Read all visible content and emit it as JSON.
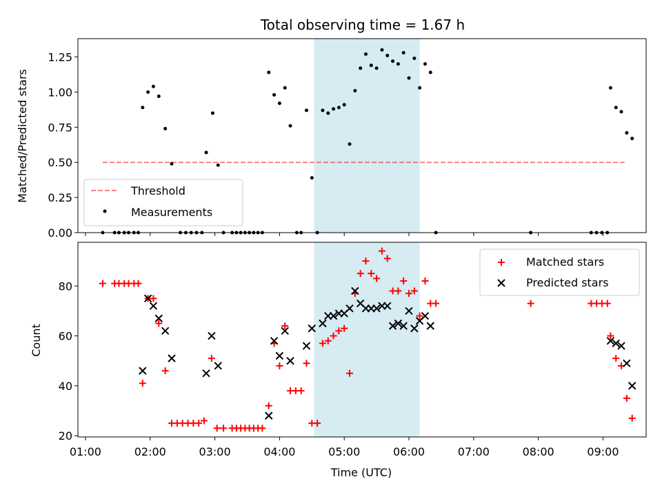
{
  "chart_data": [
    {
      "type": "scatter",
      "title": "Total observing time = 1.67 h",
      "xlabel": "",
      "ylabel": "Matched/Predicted stars",
      "xlim": [
        "00:53",
        "09:40"
      ],
      "ylim": [
        0,
        1.38
      ],
      "y_ticks": [
        0.0,
        0.25,
        0.5,
        0.75,
        1.0,
        1.25
      ],
      "y_tick_labels": [
        "0.00",
        "0.25",
        "0.50",
        "0.75",
        "1.00",
        "1.25"
      ],
      "x_ticks": [
        "01:00",
        "02:00",
        "03:00",
        "04:00",
        "05:00",
        "06:00",
        "07:00",
        "08:00",
        "09:00"
      ],
      "highlight_span": {
        "start": "04:32",
        "end": "06:10",
        "color": "#add8e6"
      },
      "threshold": {
        "name": "Threshold",
        "value": 0.5,
        "start": "01:16",
        "end": "09:20",
        "color": "#ff0000"
      },
      "legend_position": "lower-left",
      "series": [
        {
          "name": "Measurements",
          "marker": "dot",
          "color": "#000000",
          "points": [
            [
              "01:16",
              0.0
            ],
            [
              "01:27",
              0.0
            ],
            [
              "01:31",
              0.0
            ],
            [
              "01:36",
              0.0
            ],
            [
              "01:40",
              0.0
            ],
            [
              "01:45",
              0.0
            ],
            [
              "01:49",
              0.0
            ],
            [
              "01:53",
              0.89
            ],
            [
              "01:58",
              1.0
            ],
            [
              "02:03",
              1.04
            ],
            [
              "02:08",
              0.97
            ],
            [
              "02:14",
              0.74
            ],
            [
              "02:20",
              0.49
            ],
            [
              "02:28",
              0.0
            ],
            [
              "02:33",
              0.0
            ],
            [
              "02:38",
              0.0
            ],
            [
              "02:43",
              0.0
            ],
            [
              "02:48",
              0.0
            ],
            [
              "02:52",
              0.57
            ],
            [
              "02:58",
              0.85
            ],
            [
              "03:03",
              0.48
            ],
            [
              "03:08",
              0.0
            ],
            [
              "03:16",
              0.0
            ],
            [
              "03:20",
              0.0
            ],
            [
              "03:24",
              0.0
            ],
            [
              "03:28",
              0.0
            ],
            [
              "03:32",
              0.0
            ],
            [
              "03:36",
              0.0
            ],
            [
              "03:40",
              0.0
            ],
            [
              "03:44",
              0.0
            ],
            [
              "03:50",
              1.14
            ],
            [
              "03:55",
              0.98
            ],
            [
              "04:00",
              0.92
            ],
            [
              "04:05",
              1.03
            ],
            [
              "04:10",
              0.76
            ],
            [
              "04:16",
              0.0
            ],
            [
              "04:20",
              0.0
            ],
            [
              "04:25",
              0.87
            ],
            [
              "04:30",
              0.39
            ],
            [
              "04:35",
              0.0
            ],
            [
              "04:40",
              0.87
            ],
            [
              "04:45",
              0.85
            ],
            [
              "04:50",
              0.88
            ],
            [
              "04:55",
              0.89
            ],
            [
              "05:00",
              0.91
            ],
            [
              "05:05",
              0.63
            ],
            [
              "05:10",
              1.01
            ],
            [
              "05:15",
              1.17
            ],
            [
              "05:20",
              1.27
            ],
            [
              "05:25",
              1.19
            ],
            [
              "05:30",
              1.17
            ],
            [
              "05:35",
              1.3
            ],
            [
              "05:40",
              1.26
            ],
            [
              "05:45",
              1.22
            ],
            [
              "05:50",
              1.2
            ],
            [
              "05:55",
              1.28
            ],
            [
              "06:00",
              1.1
            ],
            [
              "06:05",
              1.24
            ],
            [
              "06:10",
              1.03
            ],
            [
              "06:15",
              1.2
            ],
            [
              "06:20",
              1.14
            ],
            [
              "06:25",
              0.0
            ],
            [
              "07:53",
              0.0
            ],
            [
              "08:49",
              0.0
            ],
            [
              "08:54",
              0.0
            ],
            [
              "08:59",
              0.0
            ],
            [
              "09:04",
              0.0
            ],
            [
              "09:07",
              1.03
            ],
            [
              "09:12",
              0.89
            ],
            [
              "09:17",
              0.86
            ],
            [
              "09:22",
              0.71
            ],
            [
              "09:27",
              0.67
            ]
          ]
        }
      ]
    },
    {
      "type": "scatter",
      "title": "",
      "xlabel": "Time (UTC)",
      "ylabel": "Count",
      "xlim": [
        "00:53",
        "09:40"
      ],
      "ylim": [
        19.5,
        97.5
      ],
      "y_ticks": [
        20,
        40,
        60,
        80
      ],
      "y_tick_labels": [
        "20",
        "40",
        "60",
        "80"
      ],
      "x_ticks": [
        "01:00",
        "02:00",
        "03:00",
        "04:00",
        "05:00",
        "06:00",
        "07:00",
        "08:00",
        "09:00"
      ],
      "x_tick_labels": [
        "01:00",
        "02:00",
        "03:00",
        "04:00",
        "05:00",
        "06:00",
        "07:00",
        "08:00",
        "09:00"
      ],
      "highlight_span": {
        "start": "04:32",
        "end": "06:10",
        "color": "#add8e6"
      },
      "legend_position": "top-right",
      "series": [
        {
          "name": "Matched stars",
          "marker": "plus",
          "color": "#ff0000",
          "points": [
            [
              "01:16",
              81
            ],
            [
              "01:27",
              81
            ],
            [
              "01:31",
              81
            ],
            [
              "01:36",
              81
            ],
            [
              "01:40",
              81
            ],
            [
              "01:45",
              81
            ],
            [
              "01:49",
              81
            ],
            [
              "01:53",
              41
            ],
            [
              "01:58",
              75
            ],
            [
              "02:03",
              75
            ],
            [
              "02:08",
              65
            ],
            [
              "02:14",
              46
            ],
            [
              "02:20",
              25
            ],
            [
              "02:25",
              25
            ],
            [
              "02:30",
              25
            ],
            [
              "02:35",
              25
            ],
            [
              "02:40",
              25
            ],
            [
              "02:45",
              25
            ],
            [
              "02:50",
              26
            ],
            [
              "02:57",
              51
            ],
            [
              "03:02",
              23
            ],
            [
              "03:08",
              23
            ],
            [
              "03:16",
              23
            ],
            [
              "03:20",
              23
            ],
            [
              "03:24",
              23
            ],
            [
              "03:28",
              23
            ],
            [
              "03:32",
              23
            ],
            [
              "03:36",
              23
            ],
            [
              "03:40",
              23
            ],
            [
              "03:44",
              23
            ],
            [
              "03:50",
              32
            ],
            [
              "03:55",
              57
            ],
            [
              "04:00",
              48
            ],
            [
              "04:05",
              64
            ],
            [
              "04:10",
              38
            ],
            [
              "04:15",
              38
            ],
            [
              "04:20",
              38
            ],
            [
              "04:25",
              49
            ],
            [
              "04:30",
              25
            ],
            [
              "04:35",
              25
            ],
            [
              "04:40",
              57
            ],
            [
              "04:45",
              58
            ],
            [
              "04:50",
              60
            ],
            [
              "04:55",
              62
            ],
            [
              "05:00",
              63
            ],
            [
              "05:05",
              45
            ],
            [
              "05:10",
              77
            ],
            [
              "05:15",
              85
            ],
            [
              "05:20",
              90
            ],
            [
              "05:25",
              85
            ],
            [
              "05:30",
              83
            ],
            [
              "05:35",
              94
            ],
            [
              "05:40",
              91
            ],
            [
              "05:45",
              78
            ],
            [
              "05:50",
              78
            ],
            [
              "05:55",
              82
            ],
            [
              "06:00",
              77
            ],
            [
              "06:05",
              78
            ],
            [
              "06:10",
              68
            ],
            [
              "06:15",
              82
            ],
            [
              "06:20",
              73
            ],
            [
              "06:25",
              73
            ],
            [
              "07:53",
              73
            ],
            [
              "08:49",
              73
            ],
            [
              "08:54",
              73
            ],
            [
              "08:59",
              73
            ],
            [
              "09:04",
              73
            ],
            [
              "09:07",
              60
            ],
            [
              "09:12",
              51
            ],
            [
              "09:17",
              48
            ],
            [
              "09:22",
              35
            ],
            [
              "09:27",
              27
            ]
          ]
        },
        {
          "name": "Predicted stars",
          "marker": "x",
          "color": "#000000",
          "points": [
            [
              "01:53",
              46
            ],
            [
              "01:58",
              75
            ],
            [
              "02:03",
              72
            ],
            [
              "02:08",
              67
            ],
            [
              "02:14",
              62
            ],
            [
              "02:20",
              51
            ],
            [
              "02:52",
              45
            ],
            [
              "02:57",
              60
            ],
            [
              "03:03",
              48
            ],
            [
              "03:50",
              28
            ],
            [
              "03:55",
              58
            ],
            [
              "04:00",
              52
            ],
            [
              "04:05",
              62
            ],
            [
              "04:10",
              50
            ],
            [
              "04:25",
              56
            ],
            [
              "04:30",
              63
            ],
            [
              "04:40",
              65
            ],
            [
              "04:45",
              68
            ],
            [
              "04:50",
              68
            ],
            [
              "04:55",
              69
            ],
            [
              "05:00",
              69
            ],
            [
              "05:05",
              71
            ],
            [
              "05:10",
              78
            ],
            [
              "05:15",
              73
            ],
            [
              "05:20",
              71
            ],
            [
              "05:25",
              71
            ],
            [
              "05:30",
              71
            ],
            [
              "05:35",
              72
            ],
            [
              "05:40",
              72
            ],
            [
              "05:45",
              64
            ],
            [
              "05:50",
              65
            ],
            [
              "05:55",
              64
            ],
            [
              "06:00",
              70
            ],
            [
              "06:05",
              63
            ],
            [
              "06:10",
              66
            ],
            [
              "06:15",
              68
            ],
            [
              "06:20",
              64
            ],
            [
              "09:07",
              58
            ],
            [
              "09:12",
              57
            ],
            [
              "09:17",
              56
            ],
            [
              "09:22",
              49
            ],
            [
              "09:27",
              40
            ]
          ]
        }
      ]
    }
  ]
}
